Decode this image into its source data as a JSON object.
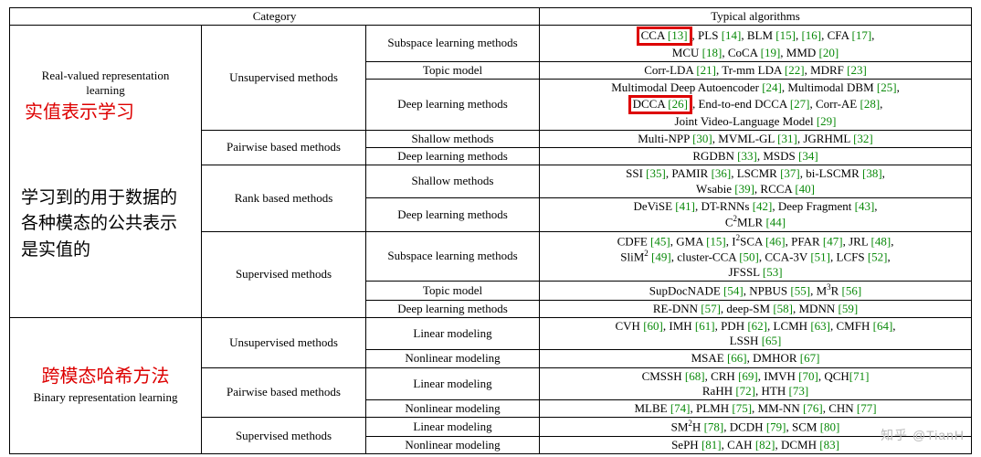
{
  "table": {
    "header": {
      "category": "Category",
      "algorithms": "Typical algorithms"
    },
    "colwidths": [
      "210px",
      "180px",
      "190px",
      "auto"
    ],
    "sections": [
      {
        "key": "rv",
        "label_en": "Real-valued representation learning",
        "label_cn_title": "实值表示学习",
        "label_cn_desc": "学习到的用于数据的各种模态的公共表示是实值的",
        "groups": [
          {
            "key": "uns",
            "label": "Unsupervised methods",
            "rows": [
              {
                "key": "subspace",
                "label": "Subspace learning methods",
                "algs_html": "<span class='red-box'>CCA <span class='cite'>[13]</span></span>, PLS <span class='cite'>[14]</span>, BLM <span class='cite'>[15]</span>, <span class='cite'>[16]</span>, CFA <span class='cite'>[17]</span>,<br>MCU <span class='cite'>[18]</span>, CoCA <span class='cite'>[19]</span>, MMD <span class='cite'>[20]</span>"
              },
              {
                "key": "topic",
                "label": "Topic model",
                "algs_html": "Corr-LDA <span class='cite'>[21]</span>, Tr-mm LDA <span class='cite'>[22]</span>, MDRF <span class='cite'>[23]</span>"
              },
              {
                "key": "dl",
                "label": "Deep learning methods",
                "algs_html": "Multimodal Deep Autoencoder <span class='cite'>[24]</span>, Multimodal DBM <span class='cite'>[25]</span>,<br><span class='red-box'>DCCA <span class='cite'>[26]</span></span>, End-to-end DCCA <span class='cite'>[27]</span>, Corr-AE <span class='cite'>[28]</span>,<br>Joint Video-Language Model <span class='cite'>[29]</span>"
              }
            ]
          },
          {
            "key": "pair",
            "label": "Pairwise based methods",
            "rows": [
              {
                "key": "shallow",
                "label": "Shallow methods",
                "algs_html": "Multi-NPP <span class='cite'>[30]</span>, MVML-GL <span class='cite'>[31]</span>, JGRHML <span class='cite'>[32]</span>"
              },
              {
                "key": "dl",
                "label": "Deep learning methods",
                "algs_html": "RGDBN <span class='cite'>[33]</span>, MSDS <span class='cite'>[34]</span>"
              }
            ]
          },
          {
            "key": "rank",
            "label": "Rank based methods",
            "rows": [
              {
                "key": "shallow",
                "label": "Shallow methods",
                "algs_html": "SSI <span class='cite'>[35]</span>, PAMIR <span class='cite'>[36]</span>, LSCMR <span class='cite'>[37]</span>, bi-LSCMR <span class='cite'>[38]</span>,<br>Wsabie <span class='cite'>[39]</span>, RCCA <span class='cite'>[40]</span>"
              },
              {
                "key": "dl",
                "label": "Deep learning methods",
                "algs_html": "DeViSE <span class='cite'>[41]</span>, DT-RNNs <span class='cite'>[42]</span>, Deep Fragment <span class='cite'>[43]</span>,<br>C<sup>2</sup>MLR <span class='cite'>[44]</span>"
              }
            ]
          },
          {
            "key": "sup",
            "label": "Supervised methods",
            "rows": [
              {
                "key": "subspace",
                "label": "Subspace learning methods",
                "algs_html": "CDFE <span class='cite'>[45]</span>, GMA <span class='cite'>[15]</span>, I<sup>2</sup>SCA <span class='cite'>[46]</span>, PFAR <span class='cite'>[47]</span>, JRL <span class='cite'>[48]</span>,<br>SliM<sup>2</sup> <span class='cite'>[49]</span>, cluster-CCA <span class='cite'>[50]</span>, CCA-3V <span class='cite'>[51]</span>, LCFS <span class='cite'>[52]</span>,<br>JFSSL <span class='cite'>[53]</span>"
              },
              {
                "key": "topic",
                "label": "Topic model",
                "algs_html": "SupDocNADE <span class='cite'>[54]</span>, NPBUS <span class='cite'>[55]</span>, M<sup>3</sup>R <span class='cite'>[56]</span>"
              },
              {
                "key": "dl",
                "label": "Deep learning methods",
                "algs_html": "RE-DNN <span class='cite'>[57]</span>, deep-SM <span class='cite'>[58]</span>, MDNN <span class='cite'>[59]</span>"
              }
            ]
          }
        ]
      },
      {
        "key": "bin",
        "label_en": "Binary representation learning",
        "label_cn_title": "跨模态哈希方法",
        "label_cn_desc": "",
        "groups": [
          {
            "key": "uns",
            "label": "Unsupervised methods",
            "rows": [
              {
                "key": "lin",
                "label": "Linear modeling",
                "algs_html": "CVH <span class='cite'>[60]</span>, IMH <span class='cite'>[61]</span>, PDH <span class='cite'>[62]</span>, LCMH <span class='cite'>[63]</span>, CMFH <span class='cite'>[64]</span>,<br>LSSH <span class='cite'>[65]</span>"
              },
              {
                "key": "nlin",
                "label": "Nonlinear modeling",
                "algs_html": "MSAE <span class='cite'>[66]</span>, DMHOR <span class='cite'>[67]</span>"
              }
            ]
          },
          {
            "key": "pair",
            "label": "Pairwise based methods",
            "rows": [
              {
                "key": "lin",
                "label": "Linear modeling",
                "algs_html": "CMSSH <span class='cite'>[68]</span>, CRH <span class='cite'>[69]</span>, IMVH <span class='cite'>[70]</span>, QCH<span class='cite'>[71]</span><br>RaHH <span class='cite'>[72]</span>, HTH <span class='cite'>[73]</span>"
              },
              {
                "key": "nlin",
                "label": "Nonlinear modeling",
                "algs_html": "MLBE <span class='cite'>[74]</span>, PLMH <span class='cite'>[75]</span>, MM-NN <span class='cite'>[76]</span>, CHN <span class='cite'>[77]</span>"
              }
            ]
          },
          {
            "key": "sup",
            "label": "Supervised methods",
            "rows": [
              {
                "key": "lin",
                "label": "Linear modeling",
                "algs_html": "SM<sup>2</sup>H <span class='cite'>[78]</span>, DCDH <span class='cite'>[79]</span>, SCM <span class='cite'>[80]</span>"
              },
              {
                "key": "nlin",
                "label": "Nonlinear modeling",
                "algs_html": "SePH <span class='cite'>[81]</span>, CAH <span class='cite'>[82]</span>, DCMH <span class='cite'>[83]</span>"
              }
            ]
          }
        ]
      }
    ]
  },
  "watermark": "知乎 @TianH",
  "colors": {
    "cite": "#0a8a0a",
    "highlight": "#d00",
    "text": "#000",
    "bg": "#fff"
  }
}
